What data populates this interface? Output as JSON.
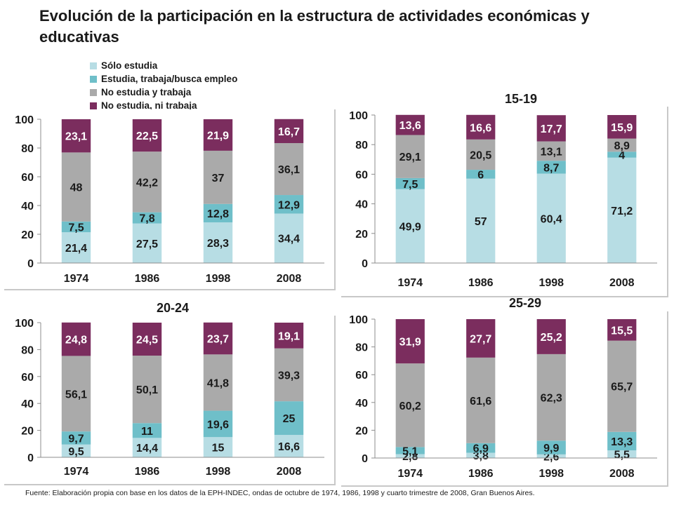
{
  "title": "Evolución de la participación en la estructura de actividades económicas y educativas",
  "footer": "Fuente: Elaboración propia con base en los datos de la EPH-INDEC, ondas de octubre de 1974, 1986, 1998 y cuarto trimestre de 2008, Gran Buenos Aires.",
  "legend": [
    {
      "label": "Sólo estudia",
      "color": "#b7dde4"
    },
    {
      "label": "Estudia, trabaja/busca empleo",
      "color": "#6fbfc9"
    },
    {
      "label": "No estudia y trabaja",
      "color": "#aaaaaa"
    },
    {
      "label": "No estudia, ni trabaja",
      "color": "#7b2d5e"
    }
  ],
  "chart_data": [
    {
      "type": "bar",
      "stacked": true,
      "title": "",
      "categories": [
        "1974",
        "1986",
        "1998",
        "2008"
      ],
      "yticks": [
        "0",
        "20",
        "40",
        "60",
        "80",
        "100"
      ],
      "ylim": [
        0,
        100
      ],
      "series": [
        {
          "name": "Sólo estudia",
          "values": [
            21.4,
            27.5,
            28.3,
            34.4
          ],
          "labels": [
            "21,4",
            "27,5",
            "28,3",
            "34,4"
          ]
        },
        {
          "name": "Estudia, trabaja/busca empleo",
          "values": [
            7.5,
            7.8,
            12.8,
            12.9
          ],
          "labels": [
            "7,5",
            "7,8",
            "12,8",
            "12,9"
          ]
        },
        {
          "name": "No estudia y trabaja",
          "values": [
            48,
            42.2,
            37,
            36.1
          ],
          "labels": [
            "48",
            "42,2",
            "37",
            "36,1"
          ]
        },
        {
          "name": "No estudia, ni trabaja",
          "values": [
            23.1,
            22.5,
            21.9,
            16.7
          ],
          "labels": [
            "23,1",
            "22,5",
            "21,9",
            "16,7"
          ]
        }
      ]
    },
    {
      "type": "bar",
      "stacked": true,
      "title": "15-19",
      "categories": [
        "1974",
        "1986",
        "1998",
        "2008"
      ],
      "yticks": [
        "0",
        "20",
        "40",
        "60",
        "80",
        "100"
      ],
      "ylim": [
        0,
        100
      ],
      "series": [
        {
          "name": "Sólo estudia",
          "values": [
            49.9,
            57,
            60.4,
            71.2
          ],
          "labels": [
            "49,9",
            "57",
            "60,4",
            "71,2"
          ]
        },
        {
          "name": "Estudia, trabaja/busca empleo",
          "values": [
            7.5,
            6,
            8.7,
            4
          ],
          "labels": [
            "7,5",
            "6",
            "8,7",
            "4"
          ]
        },
        {
          "name": "No estudia y trabaja",
          "values": [
            29.1,
            20.5,
            13.1,
            8.9
          ],
          "labels": [
            "29,1",
            "20,5",
            "13,1",
            "8,9"
          ]
        },
        {
          "name": "No estudia, ni trabaja",
          "values": [
            13.6,
            16.6,
            17.7,
            15.9
          ],
          "labels": [
            "13,6",
            "16,6",
            "17,7",
            "15,9"
          ]
        }
      ]
    },
    {
      "type": "bar",
      "stacked": true,
      "title": "20-24",
      "categories": [
        "1974",
        "1986",
        "1998",
        "2008"
      ],
      "yticks": [
        "0",
        "20",
        "40",
        "60",
        "80",
        "100"
      ],
      "ylim": [
        0,
        100
      ],
      "series": [
        {
          "name": "Sólo estudia",
          "values": [
            9.5,
            14.4,
            15,
            16.6
          ],
          "labels": [
            "9,5",
            "14,4",
            "15",
            "16,6"
          ]
        },
        {
          "name": "Estudia, trabaja/busca empleo",
          "values": [
            9.7,
            11,
            19.6,
            25
          ],
          "labels": [
            "9,7",
            "11",
            "19,6",
            "25"
          ]
        },
        {
          "name": "No estudia y trabaja",
          "values": [
            56.1,
            50.1,
            41.8,
            39.3
          ],
          "labels": [
            "56,1",
            "50,1",
            "41,8",
            "39,3"
          ]
        },
        {
          "name": "No estudia, ni trabaja",
          "values": [
            24.8,
            24.5,
            23.7,
            19.1
          ],
          "labels": [
            "24,8",
            "24,5",
            "23,7",
            "19,1"
          ]
        }
      ]
    },
    {
      "type": "bar",
      "stacked": true,
      "title": "25-29",
      "categories": [
        "1974",
        "1986",
        "1998",
        "2008"
      ],
      "yticks": [
        "0",
        "20",
        "40",
        "60",
        "80",
        "100"
      ],
      "ylim": [
        0,
        100
      ],
      "series": [
        {
          "name": "Sólo estudia",
          "values": [
            2.8,
            3.8,
            2.6,
            5.5
          ],
          "labels": [
            "2,8",
            "3,8",
            "2,6",
            "5,5"
          ]
        },
        {
          "name": "Estudia, trabaja/busca empleo",
          "values": [
            5.1,
            6.9,
            9.9,
            13.3
          ],
          "labels": [
            "5,1",
            "6,9",
            "9,9",
            "13,3"
          ]
        },
        {
          "name": "No estudia y trabaja",
          "values": [
            60.2,
            61.6,
            62.3,
            65.7
          ],
          "labels": [
            "60,2",
            "61,6",
            "62,3",
            "65,7"
          ]
        },
        {
          "name": "No estudia, ni trabaja",
          "values": [
            31.9,
            27.7,
            25.2,
            15.5
          ],
          "labels": [
            "31,9",
            "27,7",
            "25,2",
            "15,5"
          ]
        }
      ]
    }
  ]
}
